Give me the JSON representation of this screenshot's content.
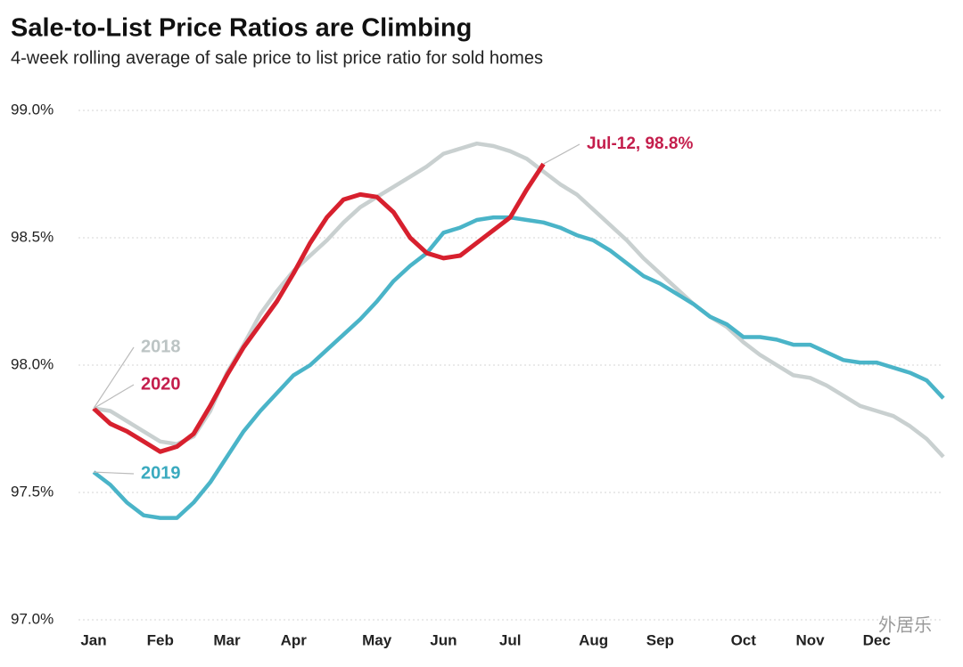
{
  "chart_data": {
    "type": "line",
    "title": "Sale-to-List Price Ratios are Climbing",
    "subtitle": "4-week rolling average of sale price to list price ratio for sold homes",
    "categories": [
      "Jan",
      null,
      null,
      null,
      "Feb",
      null,
      null,
      null,
      "Mar",
      null,
      null,
      null,
      "Apr",
      null,
      null,
      null,
      null,
      "May",
      null,
      null,
      null,
      "Jun",
      null,
      null,
      null,
      "Jul",
      null,
      null,
      null,
      null,
      "Aug",
      null,
      null,
      null,
      "Sep",
      null,
      null,
      null,
      null,
      "Oct",
      null,
      null,
      null,
      "Nov",
      null,
      null,
      null,
      "Dec",
      null,
      null,
      null,
      null
    ],
    "ylim": [
      97,
      99
    ],
    "yticks": [
      {
        "value": 97,
        "label": "97.0%"
      },
      {
        "value": 97.5,
        "label": "97.5%"
      },
      {
        "value": 98,
        "label": "98.0%"
      },
      {
        "value": 98.5,
        "label": "98.5%"
      },
      {
        "value": 99,
        "label": "99.0%"
      }
    ],
    "grid": true,
    "series": [
      {
        "name": "2018",
        "color": "#c9d0d0",
        "label_color": "#bcc4c4",
        "values": [
          97.83,
          97.82,
          97.78,
          97.74,
          97.7,
          97.69,
          97.72,
          97.82,
          97.97,
          98.08,
          98.2,
          98.29,
          98.37,
          98.43,
          98.49,
          98.56,
          98.62,
          98.66,
          98.7,
          98.74,
          98.78,
          98.83,
          98.85,
          98.87,
          98.86,
          98.84,
          98.81,
          98.76,
          98.71,
          98.67,
          98.61,
          98.55,
          98.49,
          98.42,
          98.36,
          98.3,
          98.24,
          98.19,
          98.15,
          98.09,
          98.04,
          98.0,
          97.96,
          97.95,
          97.92,
          97.88,
          97.84,
          97.82,
          97.8,
          97.76,
          97.71,
          97.64
        ]
      },
      {
        "name": "2019",
        "color": "#4ab4c8",
        "label_color": "#3aaabf",
        "values": [
          97.58,
          97.53,
          97.46,
          97.41,
          97.4,
          97.4,
          97.46,
          97.54,
          97.64,
          97.74,
          97.82,
          97.89,
          97.96,
          98.0,
          98.06,
          98.12,
          98.18,
          98.25,
          98.33,
          98.39,
          98.44,
          98.52,
          98.54,
          98.57,
          98.58,
          98.58,
          98.57,
          98.56,
          98.54,
          98.51,
          98.49,
          98.45,
          98.4,
          98.35,
          98.32,
          98.28,
          98.24,
          98.19,
          98.16,
          98.11,
          98.11,
          98.1,
          98.08,
          98.08,
          98.05,
          98.02,
          98.01,
          98.01,
          97.99,
          97.97,
          97.94,
          97.87
        ]
      },
      {
        "name": "2020",
        "color": "#d7202e",
        "label_color": "#c41e4c",
        "values": [
          97.83,
          97.77,
          97.74,
          97.7,
          97.66,
          97.68,
          97.73,
          97.84,
          97.96,
          98.07,
          98.16,
          98.25,
          98.36,
          98.48,
          98.58,
          98.65,
          98.67,
          98.66,
          98.6,
          98.5,
          98.44,
          98.42,
          98.43,
          98.48,
          98.53,
          98.58,
          98.69,
          98.79,
          null,
          null,
          null,
          null,
          null,
          null,
          null,
          null,
          null,
          null,
          null,
          null,
          null,
          null,
          null,
          null,
          null,
          null,
          null,
          null,
          null,
          null,
          null,
          null
        ]
      }
    ],
    "annotation": "Jul-12, 98.8%",
    "watermark": "外居乐"
  }
}
